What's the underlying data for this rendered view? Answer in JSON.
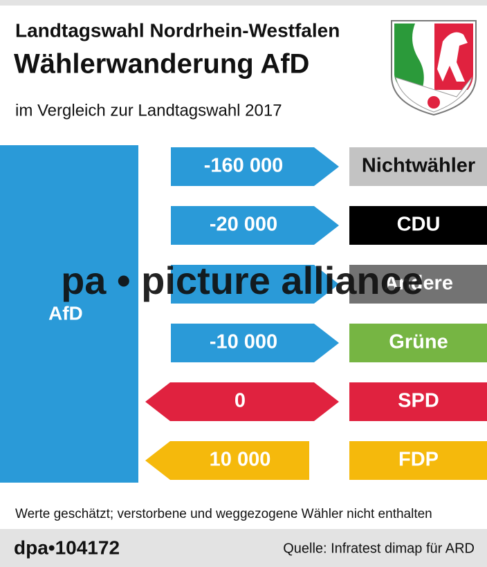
{
  "header": {
    "title": "Landtagswahl Nordrhein-Westfalen",
    "headline": "Wählerwanderung AfD",
    "subtitle": "im Vergleich zur Landtagswahl 2017"
  },
  "target": {
    "label": "AfD",
    "color": "#2a9ad8"
  },
  "flows": [
    {
      "value_label": "-160 000",
      "party": "Nichtwähler",
      "arrow": "right",
      "arrow_color": "#2a9ad8",
      "party_color": "#c3c3c3",
      "party_text_color": "#111111"
    },
    {
      "value_label": "-20 000",
      "party": "CDU",
      "arrow": "right",
      "arrow_color": "#2a9ad8",
      "party_color": "#000000",
      "party_text_color": "#ffffff"
    },
    {
      "party": "Andere",
      "arrow": "right",
      "arrow_color": "#2a9ad8",
      "party_color": "#737373",
      "party_text_color": "#ffffff"
    },
    {
      "value_label": "-10 000",
      "party": "Grüne",
      "arrow": "right",
      "arrow_color": "#2a9ad8",
      "party_color": "#76b543",
      "party_text_color": "#ffffff"
    },
    {
      "value_label": "0",
      "party": "SPD",
      "arrow": "both",
      "arrow_color": "#e0223f",
      "party_color": "#e0223f",
      "party_text_color": "#ffffff"
    },
    {
      "value_label": "10 000",
      "party": "FDP",
      "arrow": "left",
      "arrow_color": "#f5b90c",
      "party_color": "#f5b90c",
      "party_text_color": "#ffffff"
    }
  ],
  "watermark": "pa • picture alliance",
  "footnote": "Werte geschätzt; verstorbene und weggezogene Wähler nicht enthalten",
  "footer": {
    "credit": "dpa•104172",
    "source": "Quelle: Infratest dimap für ARD"
  }
}
